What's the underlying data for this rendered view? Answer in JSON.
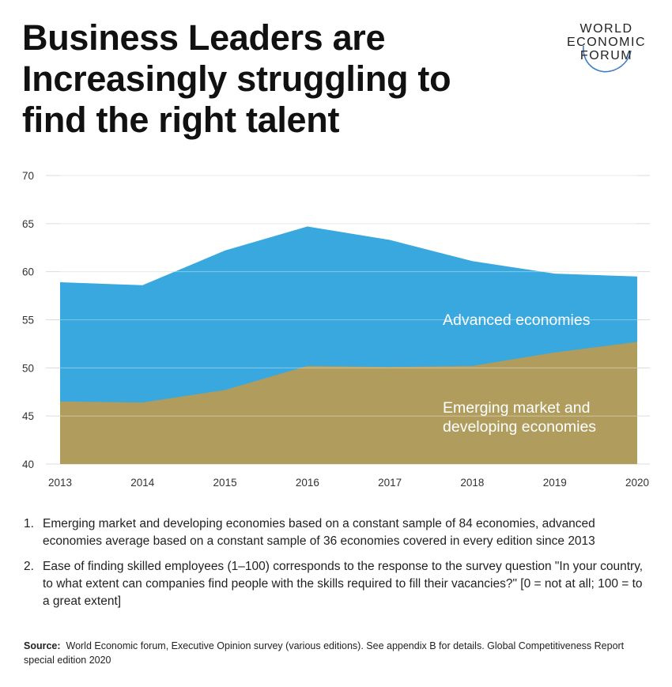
{
  "title_lines": [
    "Business Leaders are",
    "Increasingly struggling to",
    "find the right talent"
  ],
  "logo": {
    "lines": [
      "WORLD",
      "ECONOMIC",
      "FORUM"
    ]
  },
  "chart_data": {
    "type": "area",
    "x": [
      2013,
      2014,
      2015,
      2016,
      2017,
      2018,
      2019,
      2020
    ],
    "series": [
      {
        "name": "Advanced economies",
        "values": [
          58.9,
          58.6,
          62.2,
          64.7,
          63.3,
          61.1,
          59.8,
          59.5
        ],
        "color": "#38a8de"
      },
      {
        "name": "Emerging market and developing economies",
        "values": [
          46.5,
          46.4,
          47.7,
          50.2,
          50.1,
          50.2,
          51.6,
          52.7
        ],
        "color": "#b09d5d"
      }
    ],
    "label_lines": [
      [
        "Advanced economies"
      ],
      [
        "Emerging market and",
        "developing economies"
      ]
    ],
    "ylim": [
      40,
      70
    ],
    "yticks": [
      40,
      45,
      50,
      55,
      60,
      65,
      70
    ],
    "xticks": [
      "2013",
      "2014",
      "2015",
      "2016",
      "2017",
      "2018",
      "2019",
      "2020"
    ],
    "grid": true
  },
  "notes": [
    {
      "num": "1.",
      "text": "Emerging market and developing economies based on a constant sample of 84 economies, advanced economies average based on a constant sample of 36 economies covered in every edition since 2013"
    },
    {
      "num": "2.",
      "text": "Ease of finding skilled employees (1–100) corresponds to the response to the survey question \"In your country, to what extent can companies find people with the skills required to fill their vacancies?\" [0 = not at all; 100 = to a great extent]"
    }
  ],
  "source": {
    "label": "Source:",
    "text": "World Economic forum, Executive Opinion survey (various editions). See appendix B for details. Global Competitiveness Report special edition 2020"
  }
}
